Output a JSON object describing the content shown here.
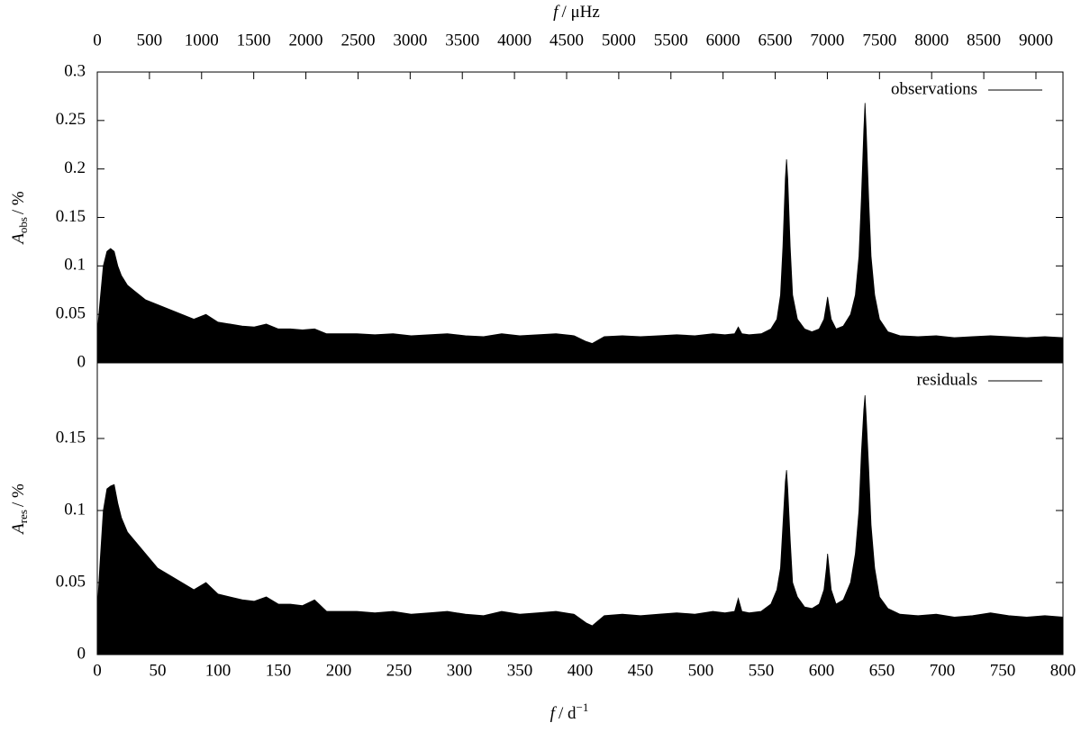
{
  "chart_data": [
    {
      "type": "area",
      "x2label_parts": [
        "f",
        "/ μHz"
      ],
      "x2lim": [
        0,
        9259.26
      ],
      "x2ticks": [
        0,
        500,
        1000,
        1500,
        2000,
        2500,
        3000,
        3500,
        4000,
        4500,
        5000,
        5500,
        6000,
        6500,
        7000,
        7500,
        8000,
        8500,
        9000
      ],
      "ylabel_parts": [
        "A",
        "obs",
        "/ %"
      ],
      "xlim": [
        0,
        800
      ],
      "ylim": [
        0,
        0.3
      ],
      "yticks": [
        0,
        0.05,
        0.1,
        0.15,
        0.2,
        0.25,
        0.3
      ],
      "x": [
        0,
        2,
        5,
        8,
        11,
        14,
        17,
        20,
        25,
        30,
        35,
        40,
        50,
        60,
        70,
        80,
        90,
        100,
        110,
        120,
        130,
        140,
        150,
        160,
        170,
        180,
        190,
        200,
        215,
        230,
        245,
        260,
        275,
        290,
        305,
        320,
        335,
        350,
        365,
        380,
        395,
        405,
        410,
        420,
        435,
        450,
        465,
        480,
        495,
        510,
        520,
        528,
        531,
        534,
        540,
        550,
        558,
        563,
        566,
        568,
        570,
        571,
        572,
        574,
        576,
        580,
        586,
        592,
        598,
        602,
        604,
        605,
        606,
        608,
        612,
        618,
        624,
        628,
        631,
        633,
        635,
        636,
        637,
        639,
        641,
        644,
        648,
        655,
        665,
        680,
        695,
        710,
        725,
        740,
        755,
        770,
        785,
        800
      ],
      "series": [
        {
          "name": "observations",
          "color": "#000000",
          "values": [
            0.03,
            0.06,
            0.1,
            0.115,
            0.118,
            0.115,
            0.1,
            0.09,
            0.08,
            0.075,
            0.07,
            0.065,
            0.06,
            0.055,
            0.05,
            0.045,
            0.05,
            0.042,
            0.04,
            0.038,
            0.037,
            0.04,
            0.035,
            0.035,
            0.034,
            0.035,
            0.03,
            0.03,
            0.03,
            0.029,
            0.03,
            0.028,
            0.029,
            0.03,
            0.028,
            0.027,
            0.03,
            0.028,
            0.029,
            0.03,
            0.028,
            0.022,
            0.02,
            0.027,
            0.028,
            0.027,
            0.028,
            0.029,
            0.028,
            0.03,
            0.029,
            0.03,
            0.037,
            0.03,
            0.029,
            0.03,
            0.035,
            0.045,
            0.07,
            0.12,
            0.19,
            0.21,
            0.19,
            0.12,
            0.07,
            0.045,
            0.035,
            0.032,
            0.035,
            0.045,
            0.06,
            0.068,
            0.06,
            0.045,
            0.035,
            0.038,
            0.05,
            0.07,
            0.11,
            0.17,
            0.24,
            0.268,
            0.24,
            0.17,
            0.11,
            0.07,
            0.045,
            0.032,
            0.028,
            0.027,
            0.028,
            0.026,
            0.027,
            0.028,
            0.027,
            0.026,
            0.027,
            0.026
          ]
        }
      ],
      "legend": "top-right"
    },
    {
      "type": "area",
      "xlabel_parts": [
        "f",
        "/ d",
        "−1"
      ],
      "xlim": [
        0,
        800
      ],
      "xticks": [
        0,
        50,
        100,
        150,
        200,
        250,
        300,
        350,
        400,
        450,
        500,
        550,
        600,
        650,
        700,
        750,
        800
      ],
      "ylabel_parts": [
        "A",
        "res",
        "/ %"
      ],
      "ylim": [
        0,
        0.2025
      ],
      "yticks": [
        0,
        0.05,
        0.1,
        0.15
      ],
      "x": [
        0,
        2,
        5,
        8,
        11,
        14,
        17,
        20,
        25,
        30,
        35,
        40,
        50,
        60,
        70,
        80,
        90,
        100,
        110,
        120,
        130,
        140,
        150,
        160,
        170,
        180,
        190,
        200,
        215,
        230,
        245,
        260,
        275,
        290,
        305,
        320,
        335,
        350,
        365,
        380,
        395,
        405,
        410,
        420,
        435,
        450,
        465,
        480,
        495,
        510,
        520,
        528,
        531,
        534,
        540,
        550,
        558,
        563,
        566,
        568,
        570,
        571,
        572,
        574,
        576,
        580,
        586,
        592,
        598,
        602,
        604,
        605,
        606,
        608,
        612,
        618,
        624,
        628,
        631,
        633,
        635,
        636,
        637,
        639,
        641,
        644,
        648,
        655,
        665,
        680,
        695,
        710,
        725,
        740,
        755,
        770,
        785,
        800
      ],
      "series": [
        {
          "name": "residuals",
          "color": "#000000",
          "values": [
            0.03,
            0.06,
            0.1,
            0.115,
            0.117,
            0.118,
            0.105,
            0.095,
            0.085,
            0.08,
            0.075,
            0.07,
            0.06,
            0.055,
            0.05,
            0.045,
            0.05,
            0.042,
            0.04,
            0.038,
            0.037,
            0.04,
            0.035,
            0.035,
            0.034,
            0.038,
            0.03,
            0.03,
            0.03,
            0.029,
            0.03,
            0.028,
            0.029,
            0.03,
            0.028,
            0.027,
            0.03,
            0.028,
            0.029,
            0.03,
            0.028,
            0.022,
            0.02,
            0.027,
            0.028,
            0.027,
            0.028,
            0.029,
            0.028,
            0.03,
            0.029,
            0.03,
            0.039,
            0.03,
            0.029,
            0.03,
            0.035,
            0.045,
            0.06,
            0.09,
            0.12,
            0.128,
            0.115,
            0.08,
            0.05,
            0.04,
            0.033,
            0.032,
            0.035,
            0.045,
            0.06,
            0.07,
            0.062,
            0.045,
            0.035,
            0.038,
            0.05,
            0.07,
            0.1,
            0.14,
            0.17,
            0.18,
            0.165,
            0.13,
            0.09,
            0.06,
            0.04,
            0.032,
            0.028,
            0.027,
            0.028,
            0.026,
            0.027,
            0.029,
            0.027,
            0.026,
            0.027,
            0.026
          ]
        }
      ],
      "legend": "top-right"
    }
  ]
}
